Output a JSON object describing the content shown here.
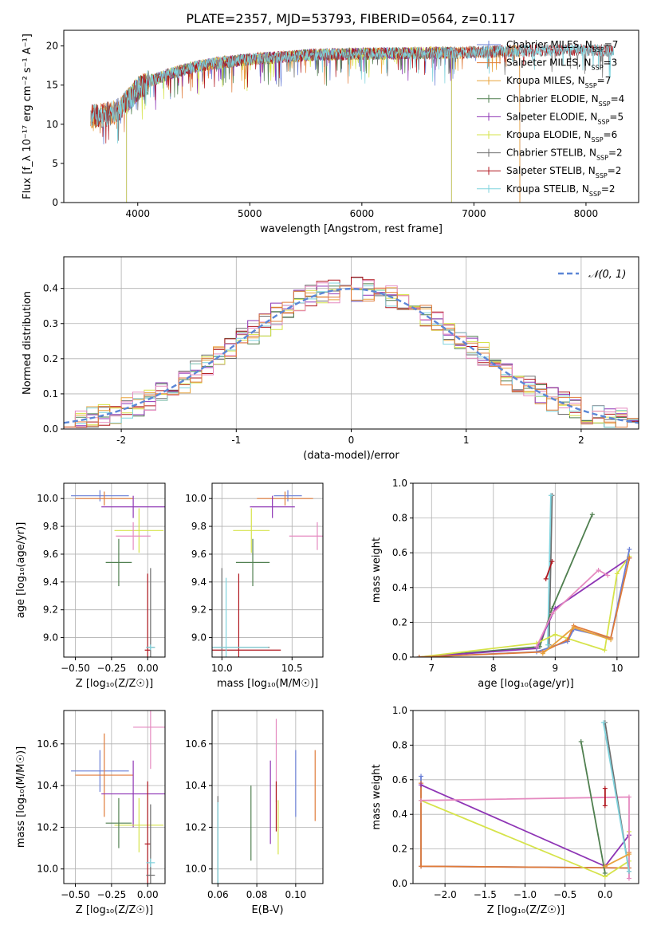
{
  "figure": {
    "title": "PLATE=2357, MJD=53793, FIBERID=0564, z=0.117"
  },
  "colors": {
    "Chabrier MILES": "#6a7fd6",
    "Salpeter MILES": "#e07b39",
    "Kroupa MILES": "#e8a33c",
    "Chabrier ELODIE": "#4f7f4f",
    "Salpeter ELODIE": "#8e35b5",
    "Kroupa ELODIE": "#d6e34a",
    "Chabrier STELIB": "#6e6e6e",
    "Salpeter STELIB": "#b0171f",
    "Kroupa STELIB": "#7fd3dd",
    "pink": "#e58ac0",
    "gaussian": "#5b86d6",
    "grid": "#b0b0b0"
  },
  "chart_data": [
    {
      "id": "spectrum",
      "type": "line",
      "xlabel": "wavelength [Angstrom, rest frame]",
      "ylabel": "Flux [f_λ 10⁻¹⁷ erg cm⁻² s⁻¹ A⁻¹]",
      "xlim": [
        3340,
        8470
      ],
      "ylim": [
        0,
        22
      ],
      "xticks": [
        4000,
        5000,
        6000,
        7000,
        8000
      ],
      "yticks": [
        0,
        5,
        10,
        15,
        20
      ],
      "grid": false,
      "legend_position": "right",
      "legend": [
        {
          "label": "Chabrier MILES, N",
          "sub": "SSP",
          "suffix": "=7",
          "color": "#6a7fd6"
        },
        {
          "label": "Salpeter MILES, N",
          "sub": "SSP",
          "suffix": "=3",
          "color": "#e07b39"
        },
        {
          "label": "Kroupa MILES, N",
          "sub": "SSP",
          "suffix": "=7",
          "color": "#e8a33c"
        },
        {
          "label": "Chabrier ELODIE, N",
          "sub": "SSP",
          "suffix": "=4",
          "color": "#4f7f4f"
        },
        {
          "label": "Salpeter ELODIE, N",
          "sub": "SSP",
          "suffix": "=5",
          "color": "#8e35b5"
        },
        {
          "label": "Kroupa ELODIE, N",
          "sub": "SSP",
          "suffix": "=6",
          "color": "#d6e34a"
        },
        {
          "label": "Chabrier STELIB, N",
          "sub": "SSP",
          "suffix": "=2",
          "color": "#6e6e6e"
        },
        {
          "label": "Salpeter STELIB, N",
          "sub": "SSP",
          "suffix": "=2",
          "color": "#b0171f"
        },
        {
          "label": "Kroupa STELIB, N",
          "sub": "SSP",
          "suffix": "=2",
          "color": "#7fd3dd"
        }
      ],
      "continuum": {
        "x": [
          3600,
          3700,
          3800,
          3900,
          4000,
          4100,
          4200,
          4300,
          4500,
          4700,
          5000,
          5300,
          5600,
          6000,
          6500,
          7000,
          7500,
          8000,
          8250
        ],
        "y": [
          11.0,
          11.2,
          11.5,
          12.8,
          14.5,
          15.5,
          16.0,
          16.5,
          17.3,
          17.8,
          18.3,
          18.6,
          18.9,
          19.0,
          19.1,
          19.2,
          19.4,
          19.5,
          19.4
        ]
      },
      "series_ranges": [
        {
          "name": "Chabrier MILES",
          "xmin": 3540,
          "xmax": 7410,
          "color": "#6a7fd6"
        },
        {
          "name": "Salpeter MILES",
          "xmin": 3540,
          "xmax": 7410,
          "color": "#e07b39"
        },
        {
          "name": "Kroupa MILES",
          "xmin": 3540,
          "xmax": 7410,
          "color": "#e8a33c"
        },
        {
          "name": "Chabrier ELODIE",
          "xmin": 3900,
          "xmax": 6800,
          "color": "#4f7f4f"
        },
        {
          "name": "Salpeter ELODIE",
          "xmin": 3900,
          "xmax": 6800,
          "color": "#8e35b5"
        },
        {
          "name": "Kroupa ELODIE",
          "xmin": 3900,
          "xmax": 6800,
          "color": "#d6e34a"
        },
        {
          "name": "Chabrier STELIB",
          "xmin": 3200,
          "xmax": 9300,
          "color": "#6e6e6e"
        },
        {
          "name": "Salpeter STELIB",
          "xmin": 3200,
          "xmax": 9300,
          "color": "#b0171f"
        },
        {
          "name": "Kroupa STELIB",
          "xmin": 3200,
          "xmax": 9300,
          "color": "#7fd3dd"
        }
      ],
      "data_range": [
        3580,
        8250
      ]
    },
    {
      "id": "residuals",
      "type": "step",
      "xlabel": "(data-model)/error",
      "ylabel": "Normed distribution",
      "xlim": [
        -2.5,
        2.5
      ],
      "ylim": [
        0,
        0.49
      ],
      "xticks": [
        -2,
        -1,
        0,
        1,
        2
      ],
      "yticks": [
        0.0,
        0.1,
        0.2,
        0.3,
        0.4
      ],
      "grid": true,
      "legend_position": "top-right",
      "legend_label": "𝒩(0, 1)",
      "bin_width": 0.1,
      "series": [
        {
          "name": "Chabrier STELIB",
          "color": "#6e6e6e",
          "offset": 0.0
        },
        {
          "name": "Chabrier ELODIE",
          "color": "#4f7f4f",
          "offset": 0.02
        },
        {
          "name": "Salpeter STELIB",
          "color": "#b0171f",
          "offset": -0.01
        },
        {
          "name": "Kroupa MILES",
          "color": "#e8a33c",
          "offset": 0.01
        },
        {
          "name": "Salpeter ELODIE",
          "color": "#8e35b5",
          "offset": -0.02
        },
        {
          "name": "Kroupa ELODIE",
          "color": "#d6e34a",
          "offset": 0.03
        },
        {
          "name": "Kroupa STELIB",
          "color": "#7fd3dd",
          "offset": -0.015
        },
        {
          "name": "pink",
          "color": "#e58ac0",
          "offset": 0.015
        },
        {
          "name": "Salpeter MILES",
          "color": "#e07b39",
          "offset": -0.005
        }
      ]
    },
    {
      "id": "age-vs-z",
      "type": "errorbar",
      "xlabel": "Z [log₁₀(Z/Z☉)]",
      "ylabel": "age  [log₁₀(age/yr)]",
      "xlim": [
        -0.58,
        0.12
      ],
      "ylim": [
        8.86,
        10.11
      ],
      "xticks": [
        -0.5,
        -0.25,
        0.0
      ],
      "xticklabels": [
        "−0.50",
        "−0.25",
        "0.00"
      ],
      "yticks": [
        9.0,
        9.2,
        9.4,
        9.6,
        9.8,
        10.0
      ],
      "grid": true,
      "points": [
        {
          "color": "#6a7fd6",
          "x": -0.33,
          "y": 10.02,
          "xerr": 0.2,
          "yerr": 0.04
        },
        {
          "color": "#e07b39",
          "x": -0.3,
          "y": 10.0,
          "xerr": 0.2,
          "yerr": 0.05
        },
        {
          "color": "#8e35b5",
          "x": -0.1,
          "y": 9.94,
          "xerr": 0.22,
          "yerr": 0.08
        },
        {
          "color": "#d6e34a",
          "x": -0.06,
          "y": 9.77,
          "xerr": 0.17,
          "yerr": 0.16
        },
        {
          "color": "#e58ac0",
          "x": -0.1,
          "y": 9.73,
          "xerr": 0.12,
          "yerr": 0.1
        },
        {
          "color": "#4f7f4f",
          "x": -0.2,
          "y": 9.54,
          "xerr": 0.09,
          "yerr": 0.17
        },
        {
          "color": "#b0171f",
          "x": 0.0,
          "y": 8.91,
          "xerr": 0.02,
          "yerr": 0.55
        },
        {
          "color": "#6e6e6e",
          "x": 0.02,
          "y": 8.93,
          "xerr": 0.03,
          "yerr": 0.57
        },
        {
          "color": "#7fd3dd",
          "x": 0.02,
          "y": 8.93,
          "xerr": 0.03,
          "yerr": 0.02
        }
      ]
    },
    {
      "id": "age-vs-mass",
      "type": "errorbar",
      "xlabel": "mass [log₁₀(M/M☉)]",
      "ylabel": "",
      "xlim": [
        9.93,
        10.72
      ],
      "ylim": [
        8.86,
        10.11
      ],
      "xticks": [
        10.0,
        10.5
      ],
      "xticklabels": [
        "10.0",
        "10.5"
      ],
      "yticks": [
        9.0,
        9.2,
        9.4,
        9.6,
        9.8,
        10.0
      ],
      "grid": true,
      "points": [
        {
          "color": "#6a7fd6",
          "x": 10.47,
          "y": 10.02,
          "xerr": 0.1,
          "yerr": 0.04
        },
        {
          "color": "#e07b39",
          "x": 10.45,
          "y": 10.0,
          "xerr": 0.2,
          "yerr": 0.05
        },
        {
          "color": "#8e35b5",
          "x": 10.36,
          "y": 9.94,
          "xerr": 0.16,
          "yerr": 0.08
        },
        {
          "color": "#d6e34a",
          "x": 10.21,
          "y": 9.77,
          "xerr": 0.13,
          "yerr": 0.16
        },
        {
          "color": "#e58ac0",
          "x": 10.68,
          "y": 9.73,
          "xerr": 0.2,
          "yerr": 0.1
        },
        {
          "color": "#4f7f4f",
          "x": 10.22,
          "y": 9.54,
          "xerr": 0.12,
          "yerr": 0.17
        },
        {
          "color": "#b0171f",
          "x": 10.12,
          "y": 8.91,
          "xerr": 0.3,
          "yerr": 0.55
        },
        {
          "color": "#6e6e6e",
          "x": 10.0,
          "y": 8.93,
          "xerr": 0.34,
          "yerr": 0.57
        },
        {
          "color": "#7fd3dd",
          "x": 10.03,
          "y": 8.93,
          "xerr": 0.3,
          "yerr": 0.5
        }
      ]
    },
    {
      "id": "mass-weight-vs-age",
      "type": "line",
      "xlabel": "age  [log₁₀(age/yr)]",
      "ylabel": "mass weight",
      "xlim": [
        6.7,
        10.35
      ],
      "ylim": [
        0,
        1.0
      ],
      "xticks": [
        7,
        8,
        9,
        10
      ],
      "yticks": [
        0.0,
        0.2,
        0.4,
        0.6,
        0.8,
        1.0
      ],
      "grid": true,
      "series": [
        {
          "name": "Chabrier STELIB",
          "color": "#6e6e6e",
          "x": [
            8.9,
            8.95
          ],
          "y": [
            0.07,
            0.93
          ]
        },
        {
          "name": "Kroupa STELIB",
          "color": "#7fd3dd",
          "x": [
            8.88,
            8.93
          ],
          "y": [
            0.07,
            0.93
          ]
        },
        {
          "name": "Salpeter STELIB",
          "color": "#b0171f",
          "x": [
            8.85,
            8.95
          ],
          "y": [
            0.45,
            0.55
          ]
        },
        {
          "name": "Chabrier ELODIE",
          "color": "#4f7f4f",
          "x": [
            6.8,
            8.75,
            8.95,
            9.6
          ],
          "y": [
            0.0,
            0.06,
            0.28,
            0.82
          ]
        },
        {
          "name": "Salpeter ELODIE",
          "color": "#8e35b5",
          "x": [
            6.8,
            8.7,
            9.0,
            10.2
          ],
          "y": [
            0.0,
            0.05,
            0.28,
            0.57
          ]
        },
        {
          "name": "Kroupa ELODIE",
          "color": "#d6e34a",
          "x": [
            6.8,
            8.7,
            9.0,
            9.8,
            10.0,
            10.2
          ],
          "y": [
            0.0,
            0.08,
            0.13,
            0.04,
            0.48,
            0.58
          ]
        },
        {
          "name": "pink",
          "color": "#e58ac0",
          "x": [
            8.7,
            8.95,
            9.7,
            9.85
          ],
          "y": [
            0.06,
            0.25,
            0.5,
            0.47
          ]
        },
        {
          "name": "Chabrier MILES",
          "color": "#6a7fd6",
          "x": [
            6.8,
            8.7,
            9.2,
            9.3,
            9.9,
            10.2
          ],
          "y": [
            0.0,
            0.03,
            0.09,
            0.16,
            0.11,
            0.62
          ]
        },
        {
          "name": "Salpeter MILES",
          "color": "#e07b39",
          "x": [
            6.8,
            8.8,
            9.2,
            9.3,
            9.9,
            10.2
          ],
          "y": [
            0.0,
            0.03,
            0.1,
            0.18,
            0.11,
            0.57
          ]
        },
        {
          "name": "Kroupa MILES",
          "color": "#e8a33c",
          "x": [
            8.8,
            9.3,
            9.9
          ],
          "y": [
            0.02,
            0.17,
            0.1
          ]
        }
      ]
    },
    {
      "id": "mass-vs-z",
      "type": "errorbar",
      "xlabel": "Z [log₁₀(Z/Z☉)]",
      "ylabel": "mass [log₁₀(M/M☉)]",
      "xlim": [
        -0.58,
        0.12
      ],
      "ylim": [
        9.93,
        10.76
      ],
      "xticks": [
        -0.5,
        -0.25,
        0.0
      ],
      "xticklabels": [
        "−0.50",
        "−0.25",
        "0.00"
      ],
      "yticks": [
        10.0,
        10.2,
        10.4,
        10.6
      ],
      "grid": true,
      "points": [
        {
          "color": "#6a7fd6",
          "x": -0.33,
          "y": 10.47,
          "xerr": 0.2,
          "yerr": 0.1
        },
        {
          "color": "#e07b39",
          "x": -0.3,
          "y": 10.45,
          "xerr": 0.2,
          "yerr": 0.2
        },
        {
          "color": "#e58ac0",
          "x": 0.02,
          "y": 10.68,
          "xerr": 0.12,
          "yerr": 0.2
        },
        {
          "color": "#8e35b5",
          "x": -0.1,
          "y": 10.36,
          "xerr": 0.22,
          "yerr": 0.16
        },
        {
          "color": "#d6e34a",
          "x": -0.06,
          "y": 10.21,
          "xerr": 0.17,
          "yerr": 0.13
        },
        {
          "color": "#4f7f4f",
          "x": -0.2,
          "y": 10.22,
          "xerr": 0.09,
          "yerr": 0.12
        },
        {
          "color": "#b0171f",
          "x": 0.0,
          "y": 10.12,
          "xerr": 0.02,
          "yerr": 0.3
        },
        {
          "color": "#6e6e6e",
          "x": 0.02,
          "y": 9.97,
          "xerr": 0.03,
          "yerr": 0.34
        },
        {
          "color": "#7fd3dd",
          "x": 0.02,
          "y": 10.03,
          "xerr": 0.03,
          "yerr": 0.02
        }
      ]
    },
    {
      "id": "mass-vs-ebv",
      "type": "errorbar",
      "xlabel": "E(B-V)",
      "ylabel": "",
      "xlim": [
        0.057,
        0.114
      ],
      "ylim": [
        9.93,
        10.76
      ],
      "xticks": [
        0.06,
        0.08,
        0.1
      ],
      "xticklabels": [
        "0.06",
        "0.08",
        "0.10"
      ],
      "yticks": [
        10.0,
        10.2,
        10.4,
        10.6
      ],
      "grid": true,
      "points": [
        {
          "color": "#6e6e6e",
          "x": 0.06,
          "y": 10.0,
          "xerr": 0.0,
          "yerr": 0.35
        },
        {
          "color": "#7fd3dd",
          "x": 0.06,
          "y": 10.0,
          "xerr": 0.0,
          "yerr": 0.32
        },
        {
          "color": "#4f7f4f",
          "x": 0.077,
          "y": 10.22,
          "xerr": 0.0,
          "yerr": 0.18
        },
        {
          "color": "#8e35b5",
          "x": 0.087,
          "y": 10.32,
          "xerr": 0.0,
          "yerr": 0.2
        },
        {
          "color": "#e58ac0",
          "x": 0.09,
          "y": 10.52,
          "xerr": 0.0,
          "yerr": 0.2
        },
        {
          "color": "#b0171f",
          "x": 0.09,
          "y": 10.3,
          "xerr": 0.0,
          "yerr": 0.12
        },
        {
          "color": "#d6e34a",
          "x": 0.091,
          "y": 10.2,
          "xerr": 0.0,
          "yerr": 0.13
        },
        {
          "color": "#6a7fd6",
          "x": 0.1,
          "y": 10.41,
          "xerr": 0.0,
          "yerr": 0.16
        },
        {
          "color": "#e07b39",
          "x": 0.11,
          "y": 10.4,
          "xerr": 0.0,
          "yerr": 0.17
        }
      ]
    },
    {
      "id": "mass-weight-vs-z",
      "type": "line",
      "xlabel": "Z [log₁₀(Z/Z☉)]",
      "ylabel": "mass weight",
      "xlim": [
        -2.4,
        0.42
      ],
      "ylim": [
        0,
        1.0
      ],
      "xticks": [
        -2.0,
        -1.5,
        -1.0,
        -0.5,
        0.0
      ],
      "xticklabels": [
        "−2.0",
        "−1.5",
        "−1.0",
        "−0.5",
        "0.0"
      ],
      "yticks": [
        0.0,
        0.2,
        0.4,
        0.6,
        0.8,
        1.0
      ],
      "grid": true,
      "series": [
        {
          "name": "Chabrier MILES",
          "color": "#6a7fd6",
          "x": [
            -2.3,
            -2.3,
            0.3
          ],
          "y": [
            0.62,
            0.1,
            0.09
          ]
        },
        {
          "name": "Salpeter MILES",
          "color": "#e07b39",
          "x": [
            -2.3,
            -2.3,
            0.3,
            0.3
          ],
          "y": [
            0.58,
            0.1,
            0.09,
            0.18
          ]
        },
        {
          "name": "Salpeter ELODIE",
          "color": "#8e35b5",
          "x": [
            -2.3,
            0.0,
            0.3
          ],
          "y": [
            0.57,
            0.1,
            0.28
          ]
        },
        {
          "name": "Kroupa ELODIE",
          "color": "#d6e34a",
          "x": [
            -2.3,
            0.0,
            0.3,
            0.3
          ],
          "y": [
            0.48,
            0.04,
            0.13,
            0.3
          ]
        },
        {
          "name": "pink",
          "color": "#e58ac0",
          "x": [
            -2.3,
            0.3,
            0.3
          ],
          "y": [
            0.48,
            0.5,
            0.03
          ]
        },
        {
          "name": "Chabrier ELODIE",
          "color": "#4f7f4f",
          "x": [
            -0.3,
            0.0
          ],
          "y": [
            0.82,
            0.06
          ]
        },
        {
          "name": "Chabrier STELIB",
          "color": "#6e6e6e",
          "x": [
            0.0,
            0.3
          ],
          "y": [
            0.93,
            0.07
          ]
        },
        {
          "name": "Kroupa STELIB",
          "color": "#7fd3dd",
          "x": [
            -0.02,
            0.3
          ],
          "y": [
            0.93,
            0.07
          ]
        },
        {
          "name": "Salpeter STELIB",
          "color": "#b0171f",
          "x": [
            0.0,
            0.0
          ],
          "y": [
            0.45,
            0.55
          ]
        },
        {
          "name": "Kroupa MILES",
          "color": "#e8a33c",
          "x": [
            0.0,
            0.3
          ],
          "y": [
            0.1,
            0.17
          ]
        }
      ]
    }
  ]
}
